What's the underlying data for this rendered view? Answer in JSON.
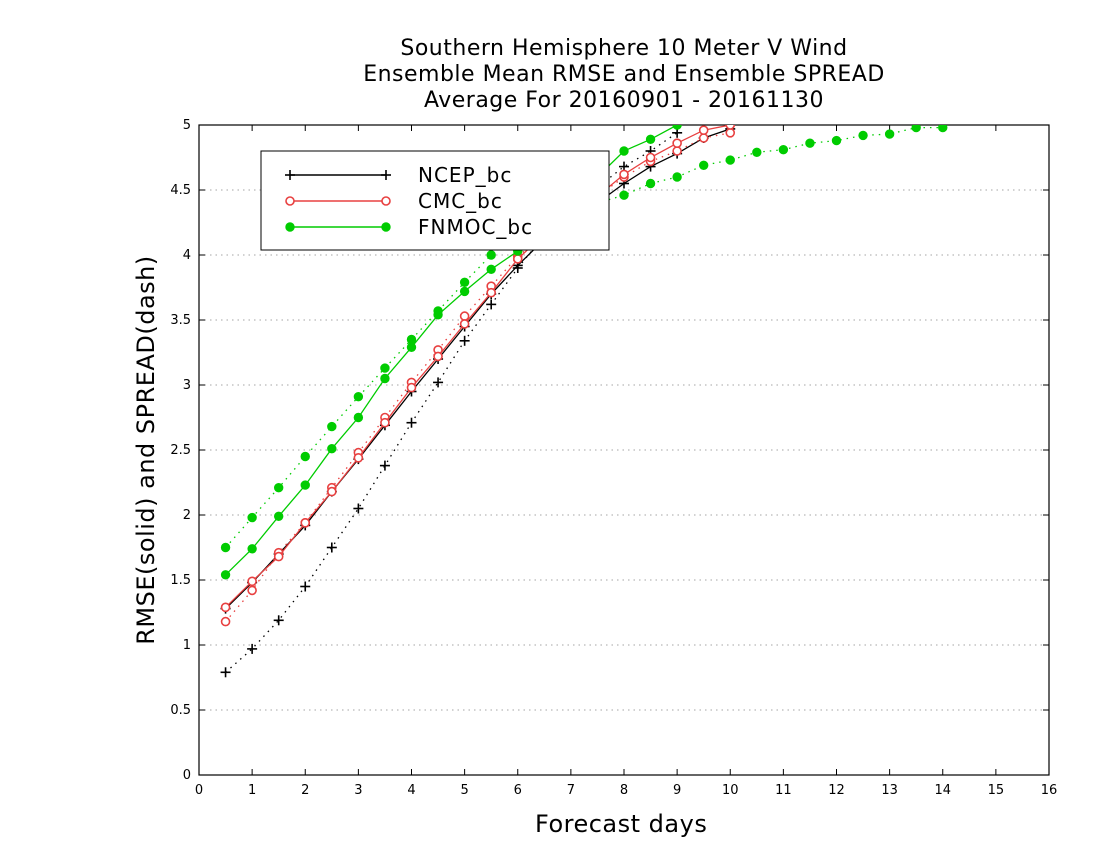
{
  "chart_data": {
    "type": "line",
    "title": [
      "Southern Hemisphere 10 Meter V Wind",
      "Ensemble Mean RMSE and Ensemble SPREAD",
      "Average For 20160901 - 20161130"
    ],
    "xlabel": "Forecast days",
    "ylabel": "RMSE(solid) and SPREAD(dash)",
    "xlim": [
      0,
      16
    ],
    "ylim": [
      0,
      5
    ],
    "xticks": [
      "0",
      "1",
      "2",
      "3",
      "4",
      "5",
      "6",
      "7",
      "8",
      "9",
      "10",
      "11",
      "12",
      "13",
      "14",
      "15",
      "16"
    ],
    "yticks": [
      "0",
      "0.5",
      "1",
      "1.5",
      "2",
      "2.5",
      "3",
      "3.5",
      "4",
      "4.5",
      "5"
    ],
    "grid": "horizontal-dotted",
    "legend_position": "top-left",
    "legend": [
      "NCEP_bc",
      "CMC_bc",
      "FNMOC_bc"
    ],
    "series": [
      {
        "name": "NCEP_bc",
        "color": "#000000",
        "marker": "plus",
        "rmse": {
          "x": [
            0.5,
            1,
            1.5,
            2,
            2.5,
            3,
            3.5,
            4,
            4.5,
            5,
            5.5,
            6,
            6.5,
            7,
            7.5,
            8,
            8.5,
            9,
            9.5,
            10
          ],
          "y": [
            1.28,
            1.48,
            1.7,
            1.92,
            2.18,
            2.43,
            2.69,
            2.95,
            3.2,
            3.45,
            3.7,
            3.92,
            4.12,
            4.28,
            4.4,
            4.55,
            4.68,
            4.78,
            4.9,
            4.97
          ]
        },
        "spread": {
          "x": [
            0.5,
            1,
            1.5,
            2,
            2.5,
            3,
            3.5,
            4,
            4.5,
            5,
            5.5,
            6,
            6.5,
            7,
            7.5,
            8,
            8.5,
            9
          ],
          "y": [
            0.79,
            0.97,
            1.19,
            1.45,
            1.75,
            2.05,
            2.38,
            2.71,
            3.02,
            3.34,
            3.62,
            3.9,
            4.15,
            4.35,
            4.52,
            4.68,
            4.8,
            4.94
          ]
        }
      },
      {
        "name": "CMC_bc",
        "color": "#e84040",
        "marker": "open-circle",
        "rmse": {
          "x": [
            0.5,
            1,
            1.5,
            2,
            2.5,
            3,
            3.5,
            4,
            4.5,
            5,
            5.5,
            6,
            6.5,
            7,
            7.5,
            8,
            8.5,
            9,
            9.5,
            10
          ],
          "y": [
            1.29,
            1.49,
            1.68,
            1.94,
            2.18,
            2.44,
            2.71,
            2.98,
            3.22,
            3.47,
            3.71,
            3.97,
            4.16,
            4.3,
            4.45,
            4.62,
            4.75,
            4.86,
            4.96,
            5.0
          ]
        },
        "spread": {
          "x": [
            0.5,
            1,
            1.5,
            2,
            2.5,
            3,
            3.5,
            4,
            4.5,
            5,
            5.5,
            6,
            6.5,
            7,
            7.5,
            8,
            8.5,
            9,
            9.5,
            10
          ],
          "y": [
            1.18,
            1.42,
            1.71,
            1.94,
            2.21,
            2.48,
            2.75,
            3.02,
            3.27,
            3.53,
            3.76,
            3.99,
            4.15,
            4.3,
            4.45,
            4.6,
            4.72,
            4.8,
            4.9,
            4.94
          ]
        }
      },
      {
        "name": "FNMOC_bc",
        "color": "#00cc00",
        "marker": "filled-circle",
        "rmse": {
          "x": [
            0.5,
            1,
            1.5,
            2,
            2.5,
            3,
            3.5,
            4,
            4.5,
            5,
            5.5,
            6,
            6.5,
            7,
            7.5,
            8,
            8.5,
            9
          ],
          "y": [
            1.54,
            1.74,
            1.99,
            2.23,
            2.51,
            2.75,
            3.05,
            3.29,
            3.54,
            3.72,
            3.89,
            4.03,
            4.25,
            4.45,
            4.6,
            4.8,
            4.89,
            5.0
          ]
        },
        "spread": {
          "x": [
            0.5,
            1,
            1.5,
            2,
            2.5,
            3,
            3.5,
            4,
            4.5,
            5,
            5.5,
            6,
            6.5,
            7,
            7.5,
            8,
            8.5,
            9,
            9.5,
            10,
            10.5,
            11,
            11.5,
            12,
            12.5,
            13,
            13.5,
            14
          ],
          "y": [
            1.75,
            1.98,
            2.21,
            2.45,
            2.68,
            2.91,
            3.13,
            3.35,
            3.57,
            3.79,
            4.0,
            4.16,
            4.26,
            4.34,
            4.4,
            4.46,
            4.55,
            4.6,
            4.69,
            4.73,
            4.79,
            4.81,
            4.86,
            4.88,
            4.92,
            4.93,
            4.98,
            4.98
          ]
        }
      }
    ]
  }
}
